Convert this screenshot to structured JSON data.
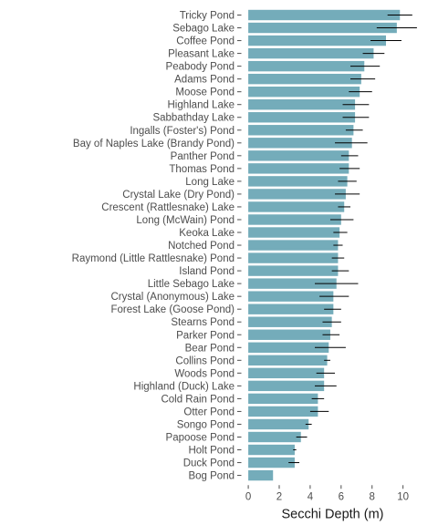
{
  "chart_data": {
    "type": "bar",
    "orientation": "horizontal",
    "categories": [
      "Tricky Pond",
      "Sebago Lake",
      "Coffee Pond",
      "Pleasant Lake",
      "Peabody Pond",
      "Adams Pond",
      "Moose Pond",
      "Highland Lake",
      "Sabbathday Lake",
      "Ingalls (Foster's) Pond",
      "Bay of Naples Lake (Brandy Pond)",
      "Panther Pond",
      "Thomas Pond",
      "Long Lake",
      "Crystal Lake (Dry Pond)",
      "Crescent (Rattlesnake) Lake",
      "Long (McWain) Pond",
      "Keoka Lake",
      "Notched Pond",
      "Raymond (Little Rattlesnake) Pond",
      "Island Pond",
      "Little Sebago Lake",
      "Crystal (Anonymous) Lake",
      "Forest Lake (Goose Pond)",
      "Stearns Pond",
      "Parker Pond",
      "Bear Pond",
      "Collins Pond",
      "Woods Pond",
      "Highland (Duck) Lake",
      "Cold Rain Pond",
      "Otter Pond",
      "Songo Pond",
      "Papoose Pond",
      "Holt Pond",
      "Duck Pond",
      "Bog Pond"
    ],
    "values": [
      9.8,
      9.6,
      8.9,
      8.1,
      7.5,
      7.3,
      7.2,
      6.9,
      6.9,
      6.8,
      6.7,
      6.5,
      6.5,
      6.4,
      6.3,
      6.2,
      6.0,
      5.9,
      5.8,
      5.8,
      5.8,
      5.7,
      5.5,
      5.5,
      5.4,
      5.3,
      5.2,
      5.1,
      4.9,
      4.9,
      4.5,
      4.5,
      3.9,
      3.4,
      3.0,
      3.0,
      1.6
    ],
    "error_low": [
      9.0,
      8.3,
      7.9,
      7.4,
      6.6,
      6.6,
      6.5,
      6.1,
      6.1,
      6.3,
      5.6,
      6.0,
      5.9,
      5.8,
      5.6,
      5.8,
      5.3,
      5.5,
      5.5,
      5.4,
      5.4,
      4.3,
      4.6,
      4.9,
      4.8,
      4.8,
      4.3,
      4.9,
      4.4,
      4.3,
      4.1,
      4.0,
      3.7,
      3.1,
      2.9,
      2.6,
      null
    ],
    "error_high": [
      10.6,
      10.9,
      9.9,
      8.8,
      8.5,
      8.2,
      8.0,
      7.8,
      7.8,
      7.4,
      7.7,
      7.1,
      7.2,
      7.0,
      7.2,
      6.6,
      6.8,
      6.4,
      6.1,
      6.2,
      6.5,
      7.1,
      6.5,
      6.0,
      6.0,
      5.9,
      6.3,
      5.3,
      5.6,
      5.7,
      4.9,
      5.2,
      4.1,
      3.8,
      3.1,
      3.3,
      null
    ],
    "xlabel": "Secchi Depth (m)",
    "ylabel": "",
    "xticks": [
      0,
      2,
      4,
      6,
      8,
      10
    ],
    "xlim": [
      -0.3,
      11.2
    ],
    "grid": false,
    "colors": {
      "bar": "#74acba",
      "error_bar": "#000000",
      "text": "#4d4d4d"
    }
  }
}
